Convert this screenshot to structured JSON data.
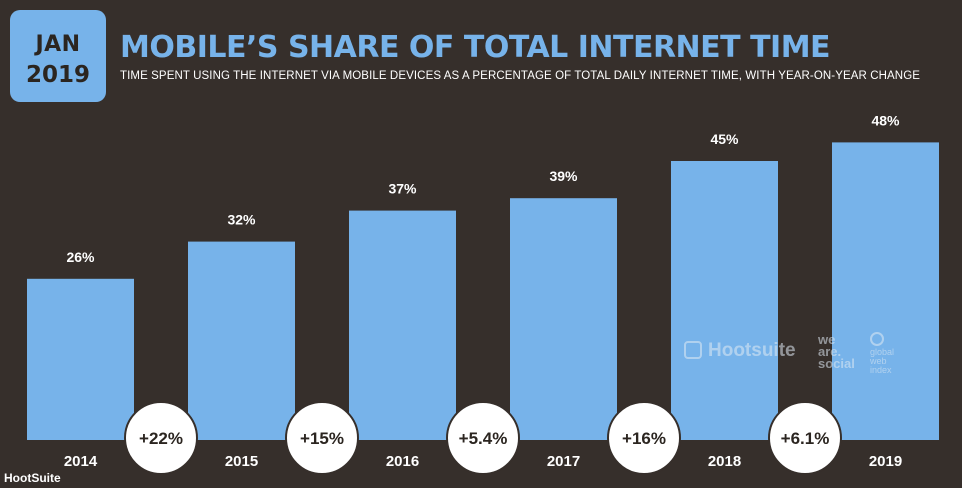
{
  "badge": {
    "month": "JAN",
    "year": "2019"
  },
  "title": "MOBILE’S SHARE OF TOTAL INTERNET TIME",
  "subtitle": "TIME SPENT USING THE INTERNET VIA MOBILE DEVICES AS A PERCENTAGE OF TOTAL DAILY INTERNET TIME, WITH YEAR-ON-YEAR CHANGE",
  "watermark": {
    "hootsuite": "Hootsuite",
    "we_are_social": [
      "we",
      "are.",
      "social"
    ],
    "gwi": [
      "global",
      "web",
      "index"
    ]
  },
  "footer": "HootSuite",
  "colors": {
    "background": "#362f2b",
    "bar": "#77b3ea",
    "title": "#77b3ea",
    "circle": "#ffffff",
    "dark_text": "#2b2520"
  },
  "chart_data": {
    "type": "bar",
    "categories": [
      "2014",
      "2015",
      "2016",
      "2017",
      "2018",
      "2019"
    ],
    "values": [
      26,
      32,
      37,
      39,
      45,
      48
    ],
    "value_labels": [
      "26%",
      "32%",
      "37%",
      "39%",
      "45%",
      "48%"
    ],
    "yoy_changes": [
      "+22%",
      "+15%",
      "+5.4%",
      "+16%",
      "+6.1%"
    ],
    "title": "MOBILE’S SHARE OF TOTAL INTERNET TIME",
    "xlabel": "",
    "ylabel": "",
    "ylim": [
      0,
      100
    ],
    "grid": false,
    "legend": "none"
  }
}
